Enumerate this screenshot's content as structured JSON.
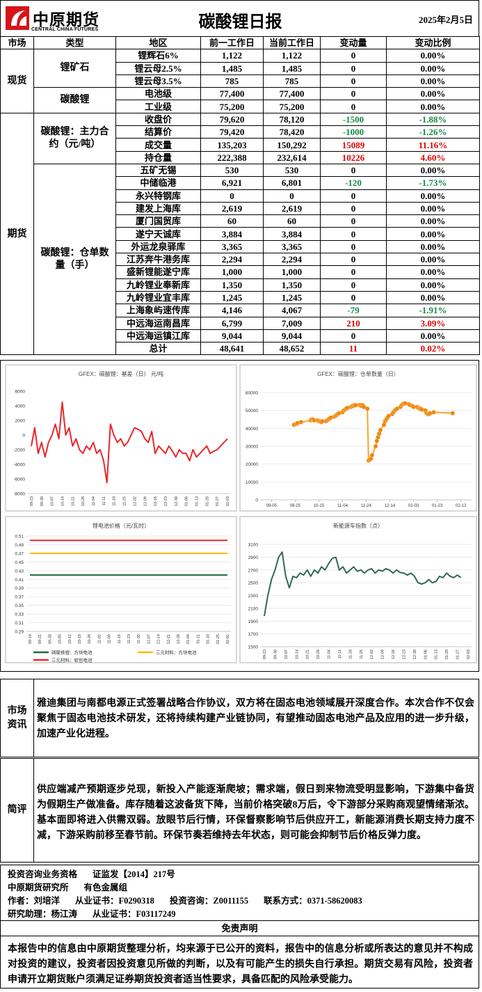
{
  "header": {
    "company": "中原期货",
    "company_en": "CENTRAL CHINA FUTURES",
    "title": "碳酸锂日报",
    "date": "2025年2月5日"
  },
  "table": {
    "headers": [
      "市场",
      "类型",
      "地区",
      "前一工作日",
      "当前工作日",
      "变动量",
      "变动比例"
    ],
    "up_color": "#e00000",
    "down_color": "#178a48",
    "sections": [
      {
        "market": "现货",
        "groups": [
          {
            "type": "锂矿石",
            "rows": [
              [
                "锂辉石6%",
                "1,122",
                "1,122",
                "0",
                "0.00%"
              ],
              [
                "锂云母2.5%",
                "1,485",
                "1,485",
                "0",
                "0.00%"
              ],
              [
                "锂云母3.5%",
                "785",
                "785",
                "0",
                "0.00%"
              ]
            ]
          },
          {
            "type": "碳酸锂",
            "rows": [
              [
                "电池级",
                "77,400",
                "77,400",
                "0",
                "0.00%"
              ],
              [
                "工业级",
                "75,200",
                "75,200",
                "0",
                "0.00%"
              ]
            ]
          }
        ]
      },
      {
        "market": "期货",
        "groups": [
          {
            "type": "碳酸锂：主力合约（元/吨）",
            "rows": [
              [
                "收盘价",
                "79,620",
                "78,120",
                "-1500",
                "-1.88%"
              ],
              [
                "结算价",
                "79,420",
                "78,420",
                "-1000",
                "-1.26%"
              ],
              [
                "成交量",
                "135,203",
                "150,292",
                "15089",
                "11.16%"
              ],
              [
                "持仓量",
                "222,388",
                "232,614",
                "10226",
                "4.60%"
              ]
            ]
          },
          {
            "type": "碳酸锂：仓单数量（手）",
            "rows": [
              [
                "五矿无锡",
                "530",
                "530",
                "0",
                "0.00%"
              ],
              [
                "中储临港",
                "6,921",
                "6,801",
                "-120",
                "-1.73%"
              ],
              [
                "永兴特钢库",
                "0",
                "0",
                "0",
                "0.00%"
              ],
              [
                "建发上海库",
                "2,619",
                "2,619",
                "0",
                "0.00%"
              ],
              [
                "厦门国贸库",
                "60",
                "60",
                "0",
                "0.00%"
              ],
              [
                "遂宁天诚库",
                "3,884",
                "3,884",
                "0",
                "0.00%"
              ],
              [
                "外运龙泉驿库",
                "3,365",
                "3,365",
                "0",
                "0.00%"
              ],
              [
                "江苏奔牛港务库",
                "2,294",
                "2,294",
                "0",
                "0.00%"
              ],
              [
                "盛新锂能遂宁库",
                "1,000",
                "1,000",
                "0",
                "0.00%"
              ],
              [
                "九岭锂业奉新库",
                "1,350",
                "1,350",
                "0",
                "0.00%"
              ],
              [
                "九岭锂业宜丰库",
                "1,245",
                "1,245",
                "0",
                "0.00%"
              ],
              [
                "上海象屿速传库",
                "4,146",
                "4,067",
                "-79",
                "-1.91%"
              ],
              [
                "中远海运南昌库",
                "6,799",
                "7,009",
                "210",
                "3.09%"
              ],
              [
                "中远海运镇江库",
                "9,044",
                "9,044",
                "0",
                "0.00%"
              ],
              [
                "总计",
                "48,641",
                "48,652",
                "11",
                "0.02%"
              ]
            ]
          }
        ]
      }
    ]
  },
  "chart_data": [
    {
      "type": "line",
      "title": "GFEX：碳酸锂：基差（日） 元/吨",
      "color": "#e8262a",
      "grid": false,
      "categories": [
        "09-23",
        null,
        null,
        "09-30",
        null,
        null,
        "10-07",
        null,
        null,
        "10-14",
        null,
        null,
        "10-21",
        null,
        null,
        "10-28",
        null,
        null,
        "11-04",
        null,
        null,
        "11-11",
        null,
        null,
        "11-18",
        null,
        null,
        "11-25",
        null,
        null,
        "12-02",
        null,
        null,
        "12-09",
        null,
        null,
        "12-16",
        null,
        null,
        "12-23",
        null,
        null,
        "12-30",
        null,
        null,
        "01-06",
        null,
        null,
        "01-13",
        null,
        null,
        "01-20",
        null,
        null,
        "01-27",
        null,
        null,
        "02-03"
      ],
      "values": [
        -1500,
        1000,
        -2500,
        -1000,
        -3000,
        -1000,
        0,
        1500,
        -500,
        4500,
        0,
        1000,
        -1500,
        -500,
        -2000,
        -2500,
        -1500,
        -2000,
        -1000,
        -2500,
        -2000,
        -3500,
        -6500,
        1500,
        0,
        -1000,
        -500,
        -1500,
        -1000,
        0,
        1000,
        800,
        500,
        -500,
        -1000,
        500,
        -2500,
        -1500,
        -2000,
        -2500,
        -1500,
        -2200,
        -3000,
        -2000,
        -2500,
        -2500,
        -3500,
        -2000,
        -3000,
        -2500,
        -2000,
        -1500,
        -2500,
        -2200,
        -2000,
        -1500,
        -1000,
        -500
      ],
      "ylim": [
        -8000,
        6000
      ],
      "yticks": [
        -8000,
        -6000,
        -4000,
        -2000,
        0,
        2000,
        4000,
        6000
      ]
    },
    {
      "type": "line",
      "title": "GFEX：碳酸锂：仓单数量（日）",
      "color": "#f5a623",
      "marker_color": "#f08214",
      "markers": true,
      "grid": true,
      "x": [
        "09-24",
        "09-26",
        "09-27",
        "09-30",
        "10-08",
        "10-09",
        "10-10",
        "10-11",
        "10-14",
        "10-15",
        "10-16",
        "10-17",
        "10-18",
        "10-21",
        "10-22",
        "10-23",
        "10-24",
        "10-25",
        "10-28",
        "10-29",
        "10-30",
        "10-31",
        "11-01",
        "11-04",
        "11-05",
        "11-06",
        "11-07",
        "11-08",
        "11-11",
        "11-12",
        "11-13",
        "11-14",
        "11-15",
        "11-18",
        "11-19",
        "11-20",
        "11-21",
        "11-22",
        "11-25",
        "11-26",
        "11-27",
        "11-28",
        "11-29",
        "12-02",
        "12-03",
        "12-04",
        "12-05",
        "12-06",
        "12-09",
        "12-10",
        "12-11",
        "12-12",
        "12-13",
        "12-16",
        "12-17",
        "12-18",
        "12-19",
        "12-20",
        "12-23",
        "12-24",
        "12-25",
        "12-26",
        "12-27",
        "12-30",
        "12-31",
        "01-02",
        "01-03",
        "01-06",
        "01-07",
        "01-08",
        "01-09",
        "01-10",
        "01-13",
        "01-14",
        "01-15",
        "01-16",
        "01-17",
        "01-20",
        "02-05"
      ],
      "values": [
        42000,
        42500,
        43000,
        43500,
        44500,
        45000,
        45000,
        44500,
        44500,
        44000,
        44000,
        43500,
        44000,
        44000,
        44500,
        45000,
        45500,
        46000,
        46500,
        47000,
        47500,
        48000,
        48500,
        49000,
        50000,
        50500,
        51000,
        51500,
        52000,
        52500,
        52500,
        53000,
        53000,
        53000,
        53000,
        52500,
        53000,
        52000,
        51000,
        22000,
        22500,
        23000,
        25000,
        30000,
        33000,
        35000,
        37000,
        39000,
        42000,
        44000,
        45000,
        46000,
        47000,
        48000,
        49000,
        50000,
        50500,
        51000,
        52000,
        53000,
        53500,
        54000,
        54000,
        53500,
        53000,
        52500,
        52000,
        52000,
        51500,
        51000,
        51000,
        50500,
        50000,
        48500,
        48000,
        48000,
        48500,
        49000,
        48500
      ],
      "xlim": [
        "08-27",
        "02-21"
      ],
      "xticks": [
        "09-05",
        "09-25",
        "10-15",
        "11-04",
        "11-24",
        "12-14",
        "01-03",
        "01-23",
        "02-12"
      ],
      "ylim": [
        0,
        60000
      ],
      "yticks": [
        0,
        10000,
        20000,
        30000,
        40000,
        50000,
        60000
      ]
    },
    {
      "type": "line",
      "title": "锂电池价格（元/瓦时）",
      "grid": true,
      "legend": "bottom",
      "categories": [
        "09-14",
        "09-21",
        "09-28",
        "10-05",
        "10-12",
        "10-19",
        "10-26",
        "11-02",
        "11-09",
        "11-16",
        "11-23",
        "11-30",
        "12-07",
        "12-14",
        "12-21",
        "12-28",
        "01-04",
        "01-11",
        "01-18",
        "01-25",
        "02-01"
      ],
      "series": [
        {
          "name": "磷酸铁锂：方块电池",
          "color": "#1f6e43",
          "values": [
            0.42,
            0.42,
            0.42,
            0.42,
            0.42,
            0.42,
            0.42,
            0.42,
            0.42,
            0.42,
            0.42,
            0.42,
            0.42,
            0.42,
            0.42,
            0.42,
            0.42,
            0.42,
            0.42,
            0.42,
            0.42
          ]
        },
        {
          "name": "三元材料：方块电池",
          "color": "#f5b800",
          "values": [
            0.47,
            0.47,
            0.47,
            0.47,
            0.47,
            0.47,
            0.47,
            0.47,
            0.47,
            0.47,
            0.47,
            0.47,
            0.47,
            0.47,
            0.47,
            0.47,
            0.47,
            0.47,
            0.47,
            0.47,
            0.47
          ]
        },
        {
          "name": "三元材料：软包电池",
          "color": "#e8262a",
          "values": [
            0.5,
            0.5,
            0.5,
            0.5,
            0.5,
            0.5,
            0.5,
            0.5,
            0.5,
            0.5,
            0.5,
            0.5,
            0.5,
            0.5,
            0.5,
            0.5,
            0.5,
            0.5,
            0.5,
            0.5,
            0.5
          ]
        }
      ],
      "ylim": [
        0.29,
        0.51
      ],
      "yticks": [
        0.29,
        0.31,
        0.33,
        0.35,
        0.37,
        0.39,
        0.41,
        0.43,
        0.45,
        0.47,
        0.49,
        0.51
      ]
    },
    {
      "type": "line",
      "title": "新能源车指数（点）",
      "color": "#2e6b4f",
      "grid": true,
      "categories": [
        "09-23",
        null,
        null,
        "09-30",
        null,
        null,
        "10-07",
        null,
        null,
        "10-14",
        null,
        null,
        "10-21",
        null,
        null,
        "10-28",
        null,
        null,
        "11-04",
        null,
        null,
        "11-11",
        null,
        null,
        "11-18",
        null,
        null,
        "11-25",
        null,
        null,
        "12-02",
        null,
        null,
        "12-09",
        null,
        null,
        "12-16",
        null,
        null,
        "12-23",
        null,
        null,
        "12-30",
        null,
        null,
        "01-06",
        null,
        null,
        "01-13",
        null,
        null,
        "01-20",
        null,
        null,
        "01-27",
        null,
        null,
        "02-03"
      ],
      "values": [
        1980,
        2300,
        2550,
        2700,
        2900,
        2980,
        2600,
        2420,
        2600,
        2580,
        2650,
        2620,
        2700,
        2600,
        2700,
        2650,
        2750,
        2700,
        2800,
        2880,
        2900,
        2700,
        2750,
        2650,
        2700,
        2750,
        2680,
        2700,
        2650,
        2700,
        2720,
        2650,
        2700,
        2680,
        2720,
        2700,
        2650,
        2700,
        2660,
        2650,
        2620,
        2650,
        2600,
        2500,
        2480,
        2500,
        2550,
        2500,
        2520,
        2600,
        2580,
        2650,
        2600,
        2580,
        2620,
        2580,
        null,
        null
      ],
      "ylim": [
        1500,
        3100
      ],
      "yticks": [
        1500,
        1700,
        1900,
        2100,
        2300,
        2500,
        2700,
        2900,
        3100
      ]
    }
  ],
  "news": {
    "label": "市场资讯",
    "text": "雅迪集团与南都电源正式签署战略合作协议，双方将在固态电池领域展开深度合作。本次合作不仅会聚焦于固态电池技术研发，还将持续构建产业链协同，有望推动固态电池产品及应用的进一步升级，加速产业化进程。"
  },
  "comment": {
    "label": "简评",
    "text": "供应端减产预期逐步兑现，新投入产能逐渐爬坡；需求端，假日到来物流受明显影响，下游集中备货为假期生产做准备。库存随着这波备货下降，当前价格突破8万后，令下游部分采购商观望情绪渐浓。基本面即将进入供需双弱。放眼节后行情，环保督察影响节后供应开工，新能源消费长期支持力度不减，下游采购前移至春节前。环保节奏若维持去年状态，则可能会抑制节后价格反弹力度。"
  },
  "footer": {
    "lines": [
      [
        "投资咨询业务资格",
        "证监发【2014】217号"
      ],
      [
        "中原期货研究所",
        "有色金属组"
      ],
      [
        "作者：刘培洋",
        "从业证书：F0290318",
        "投资咨询：Z0011155",
        "联系方式：0371-58620083"
      ],
      [
        "研究助理：杨江涛",
        "从业证书：F03117249"
      ]
    ]
  },
  "disclaimer": {
    "title": "免责声明",
    "text": "本报告中的信息由中原期货整理分析，均来源于已公开的资料，报告中的信息分析或所表达的意见并不构成对投资的建议，投资者因投资意见所做的判断，以及有可能产生的损失自行承担。期货交易有风险，投资者申请开立期货账户须满足证券期货投资者适当性要求，具备匹配的风险承受能力。"
  }
}
